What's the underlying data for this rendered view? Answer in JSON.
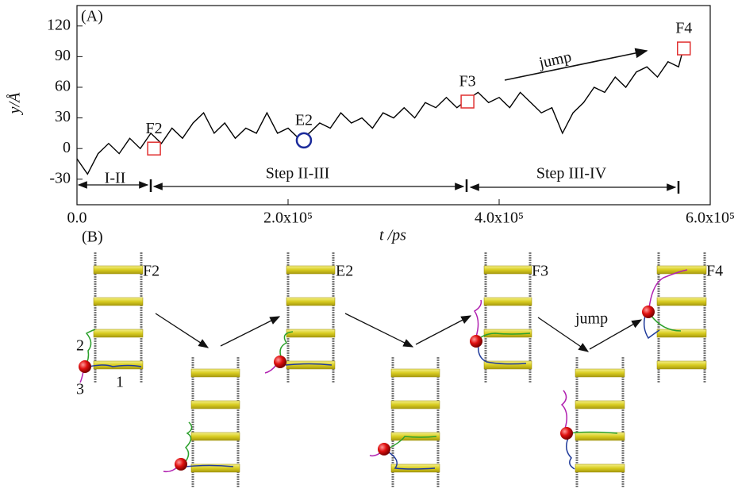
{
  "chart_data": {
    "type": "line",
    "panel_label": "(A)",
    "xlabel": "t /ps",
    "ylabel": "y/Å",
    "x": [
      0,
      10000,
      20000,
      30000,
      40000,
      50000,
      60000,
      70000,
      80000,
      90000,
      100000,
      110000,
      120000,
      130000,
      140000,
      150000,
      160000,
      170000,
      180000,
      190000,
      200000,
      210000,
      220000,
      230000,
      240000,
      250000,
      260000,
      270000,
      280000,
      290000,
      300000,
      310000,
      320000,
      330000,
      340000,
      350000,
      360000,
      370000,
      380000,
      390000,
      400000,
      410000,
      420000,
      430000,
      440000,
      450000,
      460000,
      470000,
      480000,
      490000,
      500000,
      510000,
      520000,
      530000,
      540000,
      550000,
      560000,
      570000,
      575000
    ],
    "series": [
      {
        "color": "#000000",
        "values": [
          -10,
          -25,
          -5,
          5,
          -5,
          10,
          0,
          15,
          5,
          20,
          10,
          25,
          35,
          15,
          25,
          10,
          20,
          15,
          35,
          15,
          20,
          10,
          15,
          25,
          20,
          35,
          25,
          30,
          20,
          35,
          30,
          40,
          30,
          45,
          40,
          50,
          40,
          48,
          55,
          45,
          50,
          40,
          55,
          45,
          35,
          40,
          15,
          35,
          45,
          60,
          55,
          70,
          60,
          75,
          80,
          70,
          85,
          80,
          100
        ]
      }
    ],
    "points": [
      {
        "label": "F2",
        "x": 73000,
        "y": 0,
        "shape": "square",
        "color": "#e03030"
      },
      {
        "label": "E2",
        "x": 215000,
        "y": 8,
        "shape": "circle",
        "color": "#1a2a9a"
      },
      {
        "label": "F3",
        "x": 370000,
        "y": 46,
        "shape": "square",
        "color": "#e03030"
      },
      {
        "label": "F4",
        "x": 575000,
        "y": 98,
        "shape": "square",
        "color": "#e03030"
      }
    ],
    "annotations": [
      "I-II",
      "Step II-III",
      "Step III-IV",
      "jump"
    ],
    "xlim": [
      0,
      600000
    ],
    "xticks": [
      {
        "value": 0,
        "label": "0.0"
      },
      {
        "value": 200000,
        "label": "2.0x10⁵"
      },
      {
        "value": 400000,
        "label": "4.0x10⁵"
      },
      {
        "value": 600000,
        "label": "6.0x10⁵"
      }
    ],
    "ylim": [
      -55,
      140
    ],
    "yticks": [
      -30,
      0,
      30,
      60,
      90,
      120
    ]
  },
  "panel_b": {
    "label": "(B)",
    "states": [
      "F2",
      "E2",
      "F3",
      "F4"
    ],
    "strand_labels": [
      "2",
      "3",
      "1"
    ],
    "jump": "jump"
  }
}
